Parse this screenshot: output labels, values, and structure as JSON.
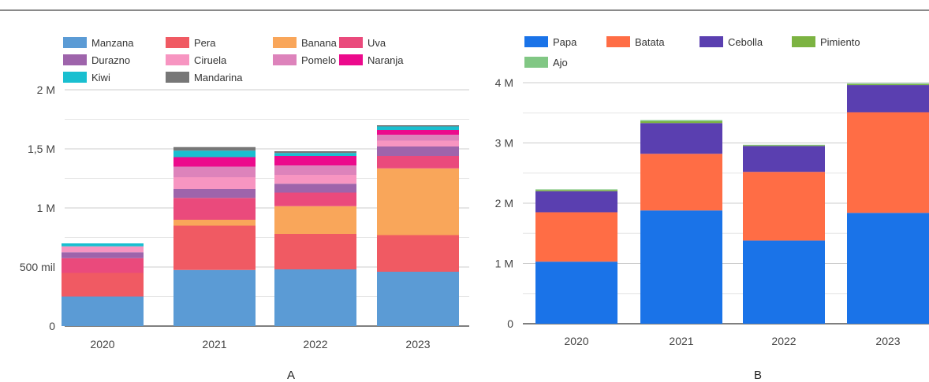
{
  "chart_data": [
    {
      "type": "bar",
      "stacked": true,
      "panel_label": "A",
      "categories": [
        "2020",
        "2021",
        "2022",
        "2023"
      ],
      "ylim": [
        0,
        2000000
      ],
      "yticks": [
        {
          "value": 0,
          "label": "0"
        },
        {
          "value": 500000,
          "label": "500 mil"
        },
        {
          "value": 1000000,
          "label": "1 M"
        },
        {
          "value": 1500000,
          "label": "1,5 M"
        },
        {
          "value": 2000000,
          "label": "2 M"
        }
      ],
      "grid": true,
      "legend_position": "top",
      "series": [
        {
          "name": "Manzana",
          "color": "#5b9bd5",
          "values": [
            250000,
            475000,
            480000,
            460000
          ]
        },
        {
          "name": "Pera",
          "color": "#f05a63",
          "values": [
            200000,
            375000,
            300000,
            310000
          ]
        },
        {
          "name": "Banana",
          "color": "#f9a65a",
          "values": [
            0,
            50000,
            235000,
            565000
          ]
        },
        {
          "name": "Uva",
          "color": "#ea4a7c",
          "values": [
            125000,
            185000,
            115000,
            105000
          ]
        },
        {
          "name": "Durazno",
          "color": "#9e64ab",
          "values": [
            50000,
            75000,
            75000,
            80000
          ]
        },
        {
          "name": "Ciruela",
          "color": "#f795c1",
          "values": [
            50000,
            100000,
            75000,
            50000
          ]
        },
        {
          "name": "Pomelo",
          "color": "#dd83bb",
          "values": [
            0,
            90000,
            80000,
            50000
          ]
        },
        {
          "name": "Naranja",
          "color": "#ec0a8c",
          "values": [
            0,
            80000,
            80000,
            40000
          ]
        },
        {
          "name": "Kiwi",
          "color": "#19bfd0",
          "values": [
            25000,
            55000,
            25000,
            30000
          ]
        },
        {
          "name": "Mandarina",
          "color": "#777777",
          "values": [
            0,
            30000,
            15000,
            10000
          ]
        }
      ]
    },
    {
      "type": "bar",
      "stacked": true,
      "panel_label": "B",
      "categories": [
        "2020",
        "2021",
        "2022",
        "2023"
      ],
      "ylim": [
        0,
        4000000
      ],
      "yticks": [
        {
          "value": 0,
          "label": "0"
        },
        {
          "value": 1000000,
          "label": "1 M"
        },
        {
          "value": 2000000,
          "label": "2 M"
        },
        {
          "value": 3000000,
          "label": "3 M"
        },
        {
          "value": 4000000,
          "label": "4 M"
        }
      ],
      "grid": true,
      "legend_position": "top",
      "series": [
        {
          "name": "Papa",
          "color": "#1a73e8",
          "values": [
            1030000,
            1880000,
            1380000,
            1840000
          ]
        },
        {
          "name": "Batata",
          "color": "#ff6d45",
          "values": [
            820000,
            940000,
            1140000,
            1670000
          ]
        },
        {
          "name": "Cebolla",
          "color": "#5a3fb0",
          "values": [
            350000,
            510000,
            430000,
            450000
          ]
        },
        {
          "name": "Pimiento",
          "color": "#7cb342",
          "values": [
            20000,
            30000,
            10000,
            15000
          ]
        },
        {
          "name": "Ajo",
          "color": "#81c784",
          "values": [
            10000,
            20000,
            10000,
            15000
          ]
        }
      ]
    }
  ]
}
